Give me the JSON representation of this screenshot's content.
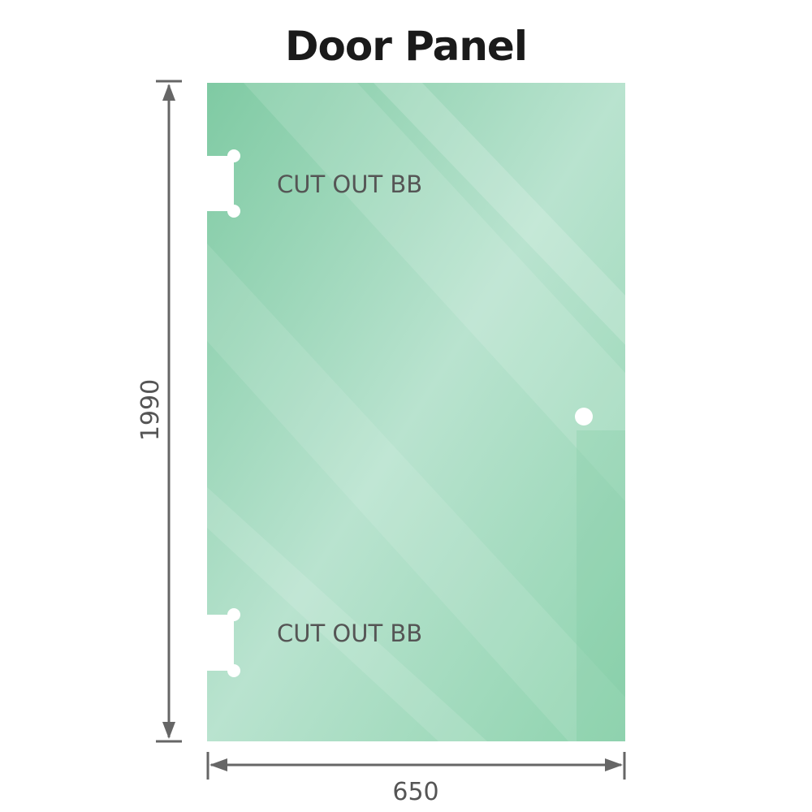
{
  "title": "Door Panel",
  "panel": {
    "color": "#86cfa9",
    "cutout_labels": [
      "CUT OUT BB",
      "CUT OUT BB"
    ]
  },
  "dimensions": {
    "height": "1990",
    "width": "650"
  }
}
